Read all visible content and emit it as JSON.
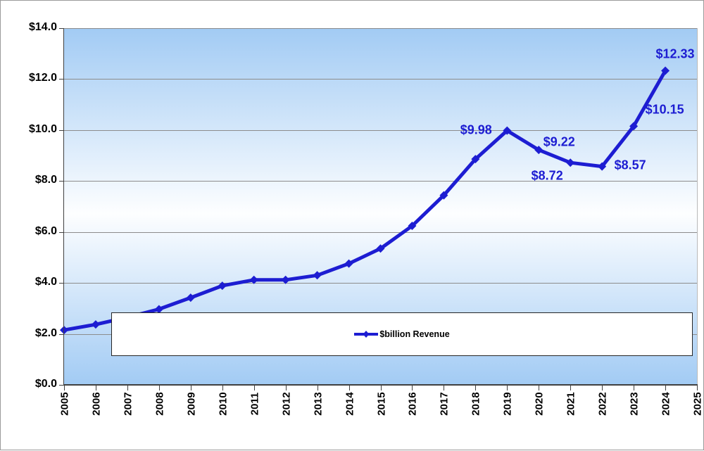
{
  "colors": {
    "series_blue": "#1d1dd2",
    "data_label_blue": "#1d1dd2",
    "gridline_gray": "#8c8c8c",
    "axis_dark": "#404040",
    "plot_gradient_edge": "#a2cbf4",
    "plot_gradient_middle": "#fdfeff",
    "legend_border": "#262626"
  },
  "chart_data": {
    "type": "line",
    "title": "",
    "xlabel": "",
    "ylabel": "",
    "ylim": [
      0,
      14
    ],
    "xlim": [
      2005,
      2025
    ],
    "grid": "horizontal",
    "legend_position": "bottom-center-overlay",
    "y_tick_labels": [
      "$0.0",
      "$2.0",
      "$4.0",
      "$6.0",
      "$8.0",
      "$10.0",
      "$12.0",
      "$14.0"
    ],
    "y_tick_values": [
      0,
      2,
      4,
      6,
      8,
      10,
      12,
      14
    ],
    "x_tick_labels": [
      "2005",
      "2006",
      "2007",
      "2008",
      "2009",
      "2010",
      "2011",
      "2012",
      "2013",
      "2014",
      "2015",
      "2016",
      "2017",
      "2018",
      "2019",
      "2020",
      "2021",
      "2022",
      "2023",
      "2024",
      "2025"
    ],
    "x_tick_values": [
      2005,
      2006,
      2007,
      2008,
      2009,
      2010,
      2011,
      2012,
      2013,
      2014,
      2015,
      2016,
      2017,
      2018,
      2019,
      2020,
      2021,
      2022,
      2023,
      2024,
      2025
    ],
    "x": [
      2005,
      2006,
      2007,
      2008,
      2009,
      2010,
      2011,
      2012,
      2013,
      2014,
      2015,
      2016,
      2017,
      2018,
      2019,
      2020,
      2021,
      2022,
      2023,
      2024
    ],
    "series": [
      {
        "name": "$billion Revenue",
        "values": [
          2.15,
          2.37,
          2.65,
          2.97,
          3.42,
          3.89,
          4.12,
          4.12,
          4.3,
          4.76,
          5.35,
          6.24,
          7.44,
          8.86,
          9.98,
          9.22,
          8.72,
          8.57,
          10.15,
          12.33
        ]
      }
    ],
    "point_labels": [
      {
        "year": 2019,
        "text": "$9.98"
      },
      {
        "year": 2020,
        "text": "$9.22"
      },
      {
        "year": 2021,
        "text": "$8.72"
      },
      {
        "year": 2022,
        "text": "$8.57"
      },
      {
        "year": 2023,
        "text": "$10.15"
      },
      {
        "year": 2024,
        "text": "$12.33"
      }
    ]
  }
}
